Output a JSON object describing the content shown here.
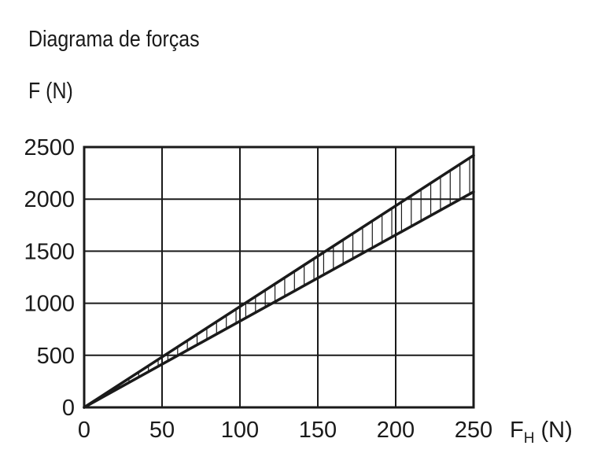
{
  "chart_data": {
    "type": "area",
    "title": "Diagrama de forças",
    "ylabel": "F (N)",
    "xlabel_main": "F",
    "xlabel_sub": "H",
    "xlabel_unit": " (N)",
    "xlim": [
      0,
      250
    ],
    "ylim": [
      0,
      2500
    ],
    "xticks": [
      0,
      50,
      100,
      150,
      200,
      250
    ],
    "yticks": [
      0,
      500,
      1000,
      1500,
      2000,
      2500
    ],
    "grid": true,
    "series": [
      {
        "x": [
          0,
          250
        ],
        "values": [
          0,
          2420
        ]
      },
      {
        "x": [
          0,
          250
        ],
        "values": [
          0,
          2070
        ]
      }
    ],
    "band_hatch": "vertical"
  }
}
